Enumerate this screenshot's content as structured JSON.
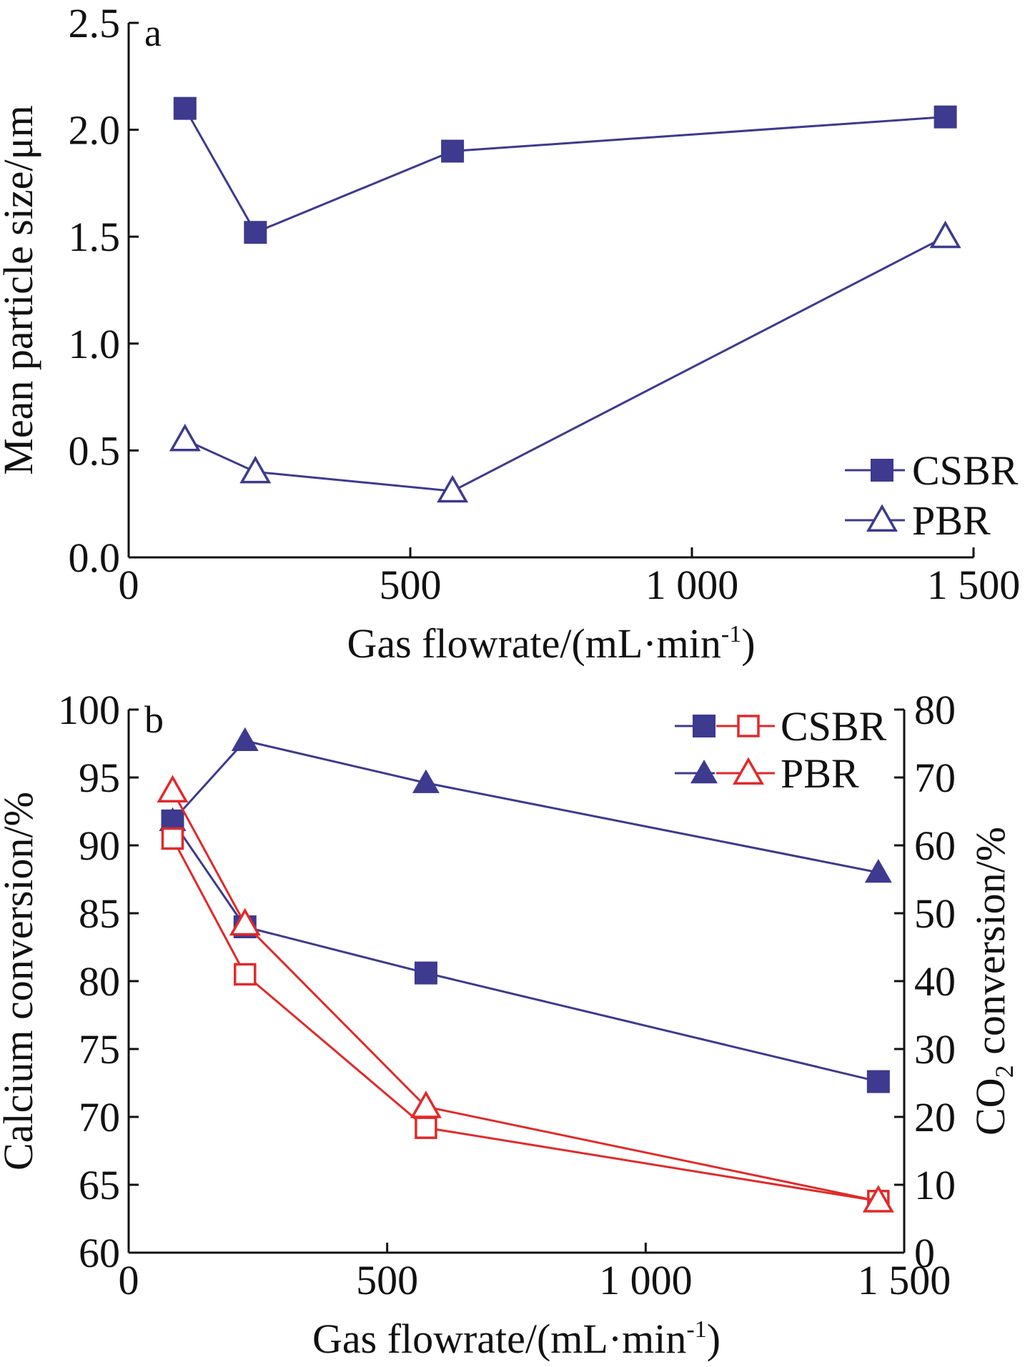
{
  "chart_data": [
    {
      "type": "line",
      "panel_label": "a",
      "xlabel": "Gas flowrate/(mL·min-1)",
      "ylabel": "Mean particle size/μm",
      "xlim": [
        0,
        1500
      ],
      "ylim": [
        0,
        2.5
      ],
      "xticks": [
        "0",
        "500",
        "1 000",
        "1 500"
      ],
      "yticks": [
        "0.0",
        "0.5",
        "1.0",
        "1.5",
        "2.0",
        "2.5"
      ],
      "legend_position": "bottom-right",
      "series": [
        {
          "name": "CSBR",
          "marker": "filled-square",
          "color": "#3d3a8f",
          "x": [
            100,
            225,
            575,
            1450
          ],
          "y": [
            2.1,
            1.52,
            1.9,
            2.06
          ]
        },
        {
          "name": "PBR",
          "marker": "open-triangle",
          "color": "#3d3a8f",
          "x": [
            100,
            225,
            575,
            1450
          ],
          "y": [
            0.55,
            0.4,
            0.31,
            1.5
          ]
        }
      ]
    },
    {
      "type": "line",
      "panel_label": "b",
      "xlabel": "Gas flowrate/(mL·min-1)",
      "ylabel": "Calcium conversion/%",
      "ylabel_right": "CO2 conversion/%",
      "xlim": [
        0,
        1500
      ],
      "ylim": [
        60,
        100
      ],
      "ylim_right": [
        0,
        80
      ],
      "xticks": [
        "0",
        "500",
        "1 000",
        "1 500"
      ],
      "yticks": [
        "60",
        "65",
        "70",
        "75",
        "80",
        "85",
        "90",
        "95",
        "100"
      ],
      "yticks_right": [
        "0",
        "10",
        "20",
        "30",
        "40",
        "50",
        "60",
        "70",
        "80"
      ],
      "legend_position": "top-right",
      "legend": [
        "CSBR",
        "PBR"
      ],
      "series": [
        {
          "name": "CSBR",
          "axis": "left",
          "marker": "filled-square",
          "color": "#3d3a8f",
          "x": [
            85,
            225,
            575,
            1450
          ],
          "y": [
            91.8,
            84.0,
            80.6,
            72.6
          ]
        },
        {
          "name": "PBR",
          "axis": "left",
          "marker": "filled-triangle",
          "color": "#3d3a8f",
          "x": [
            85,
            225,
            575,
            1450
          ],
          "y": [
            91.8,
            97.7,
            94.6,
            88.0
          ]
        },
        {
          "name": "CSBR",
          "axis": "right",
          "marker": "open-square",
          "color": "#e02a2a",
          "x": [
            85,
            225,
            575,
            1450
          ],
          "y": [
            61.0,
            41.0,
            18.4,
            7.6
          ]
        },
        {
          "name": "PBR",
          "axis": "right",
          "marker": "open-triangle",
          "color": "#e02a2a",
          "x": [
            85,
            225,
            575,
            1450
          ],
          "y": [
            68.0,
            48.4,
            21.5,
            7.6
          ]
        }
      ]
    }
  ]
}
